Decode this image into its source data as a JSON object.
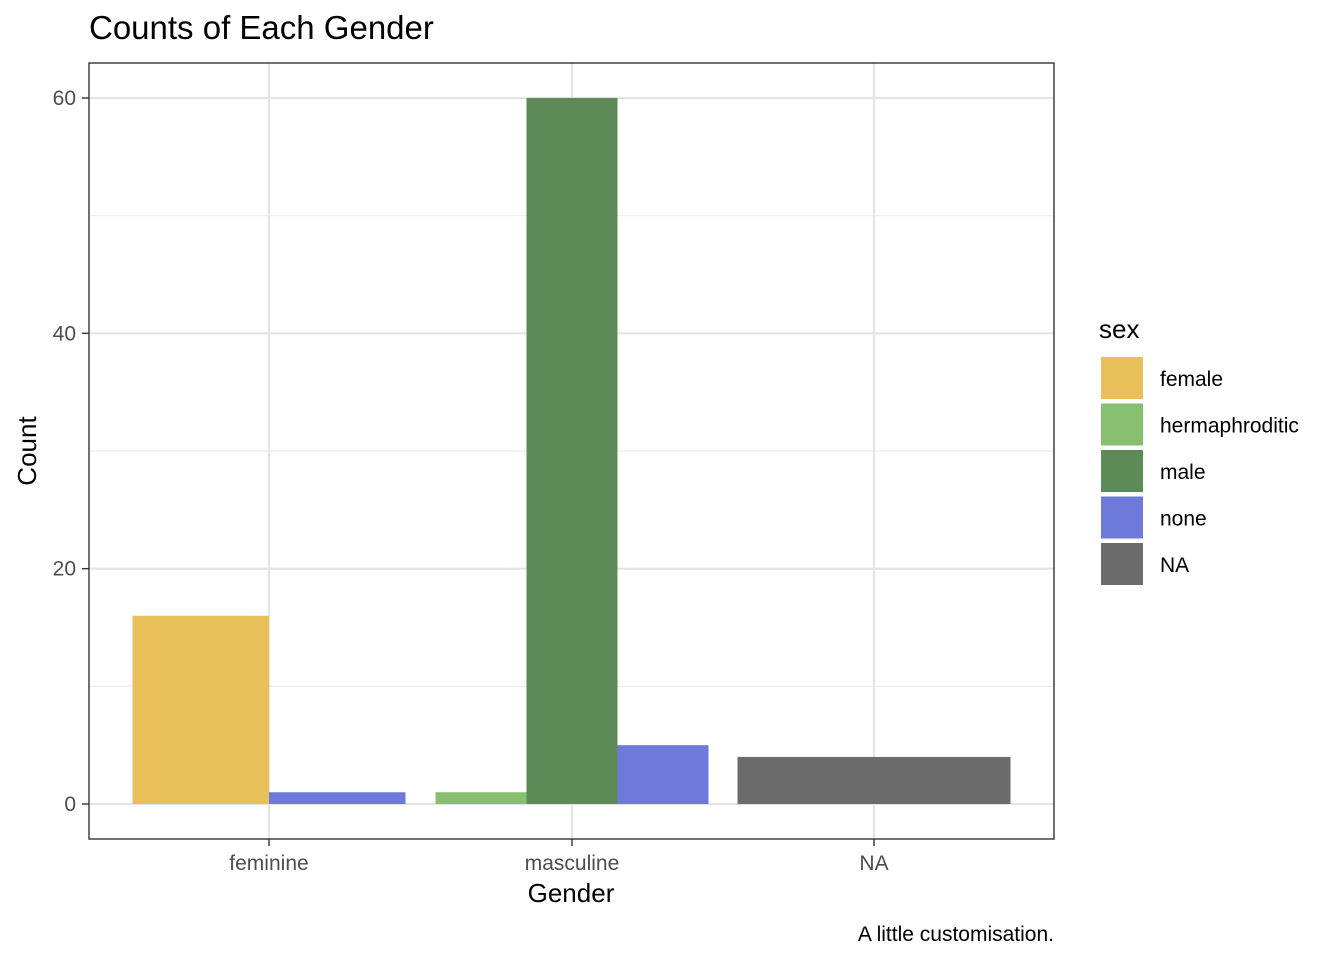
{
  "chart_data": {
    "type": "bar",
    "title": "Counts of Each Gender",
    "xlabel": "Gender",
    "ylabel": "Count",
    "caption": "A little customisation.",
    "categories": [
      "feminine",
      "masculine",
      "NA"
    ],
    "ylim": [
      0,
      63
    ],
    "yticks": [
      0,
      20,
      40,
      60
    ],
    "grid": true,
    "legend": {
      "title": "sex",
      "placement": "right",
      "entries": [
        {
          "key": "female",
          "label": "female",
          "color": "#E9BF5A"
        },
        {
          "key": "hermaphroditic",
          "label": "hermaphroditic",
          "color": "#88BE6F"
        },
        {
          "key": "male",
          "label": "male",
          "color": "#5C8B57"
        },
        {
          "key": "none",
          "label": "none",
          "color": "#6D79DB"
        },
        {
          "key": "NA",
          "label": "NA",
          "color": "#6B6B6B"
        }
      ]
    },
    "groups": [
      {
        "category": "feminine",
        "bars": [
          {
            "sex": "female",
            "value": 16
          },
          {
            "sex": "none",
            "value": 1
          }
        ]
      },
      {
        "category": "masculine",
        "bars": [
          {
            "sex": "hermaphroditic",
            "value": 1
          },
          {
            "sex": "male",
            "value": 60
          },
          {
            "sex": "none",
            "value": 5
          }
        ]
      },
      {
        "category": "NA",
        "bars": [
          {
            "sex": "NA",
            "value": 4
          }
        ]
      }
    ]
  }
}
